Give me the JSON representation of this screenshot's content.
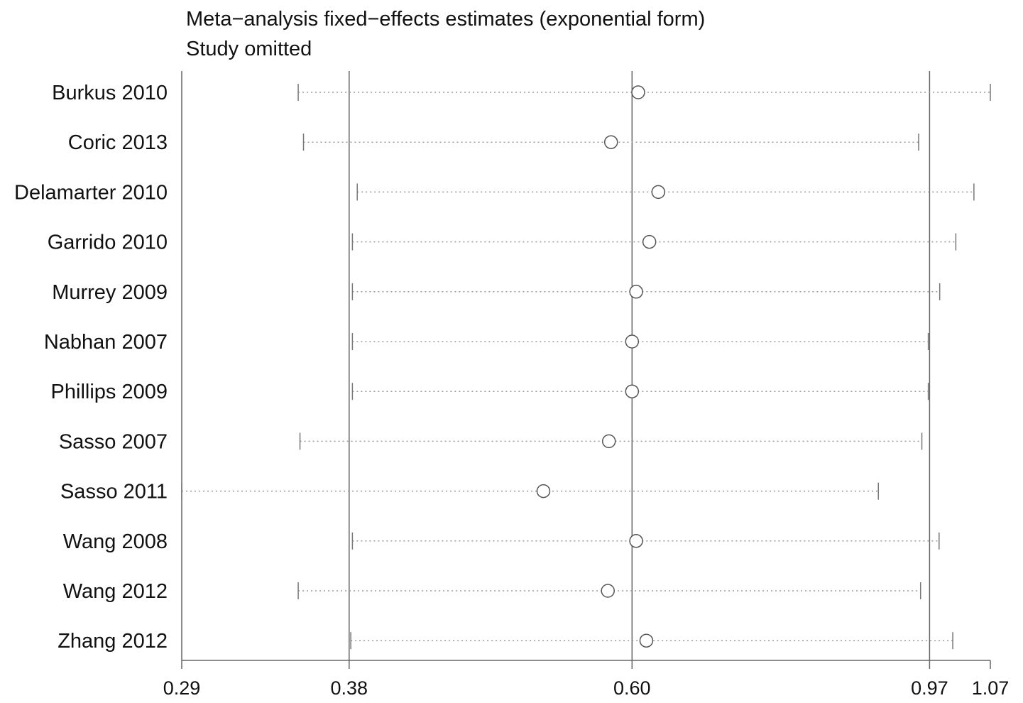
{
  "chart_data": {
    "type": "scatter",
    "title": "Meta−analysis fixed−effects estimates (exponential form)",
    "subtitle": "Study omitted",
    "xscale": "log",
    "xlim": [
      0.29,
      1.07
    ],
    "xticks": [
      "0.29",
      "0.38",
      "0.60",
      "0.97",
      "1.07"
    ],
    "reference_lines": [
      0.38,
      0.6,
      0.97
    ],
    "grid": false,
    "series": [
      {
        "studies": [
          {
            "label": "Burkus 2010",
            "estimate": 0.606,
            "lower": 0.35,
            "upper": 1.07
          },
          {
            "label": "Coric 2013",
            "estimate": 0.58,
            "lower": 0.353,
            "upper": 0.953
          },
          {
            "label": "Delamarter 2010",
            "estimate": 0.626,
            "lower": 0.385,
            "upper": 1.042
          },
          {
            "label": "Garrido 2010",
            "estimate": 0.617,
            "lower": 0.382,
            "upper": 1.012
          },
          {
            "label": "Murrey 2009",
            "estimate": 0.604,
            "lower": 0.382,
            "upper": 0.986
          },
          {
            "label": "Nabhan 2007",
            "estimate": 0.6,
            "lower": 0.382,
            "upper": 0.968
          },
          {
            "label": "Phillips 2009",
            "estimate": 0.6,
            "lower": 0.382,
            "upper": 0.968
          },
          {
            "label": "Sasso 2007",
            "estimate": 0.578,
            "lower": 0.351,
            "upper": 0.958
          },
          {
            "label": "Sasso 2011",
            "estimate": 0.52,
            "lower": 0.29,
            "upper": 0.893
          },
          {
            "label": "Wang 2008",
            "estimate": 0.604,
            "lower": 0.382,
            "upper": 0.985
          },
          {
            "label": "Wang 2012",
            "estimate": 0.577,
            "lower": 0.35,
            "upper": 0.956
          },
          {
            "label": "Zhang 2012",
            "estimate": 0.614,
            "lower": 0.381,
            "upper": 1.007
          }
        ]
      }
    ]
  }
}
